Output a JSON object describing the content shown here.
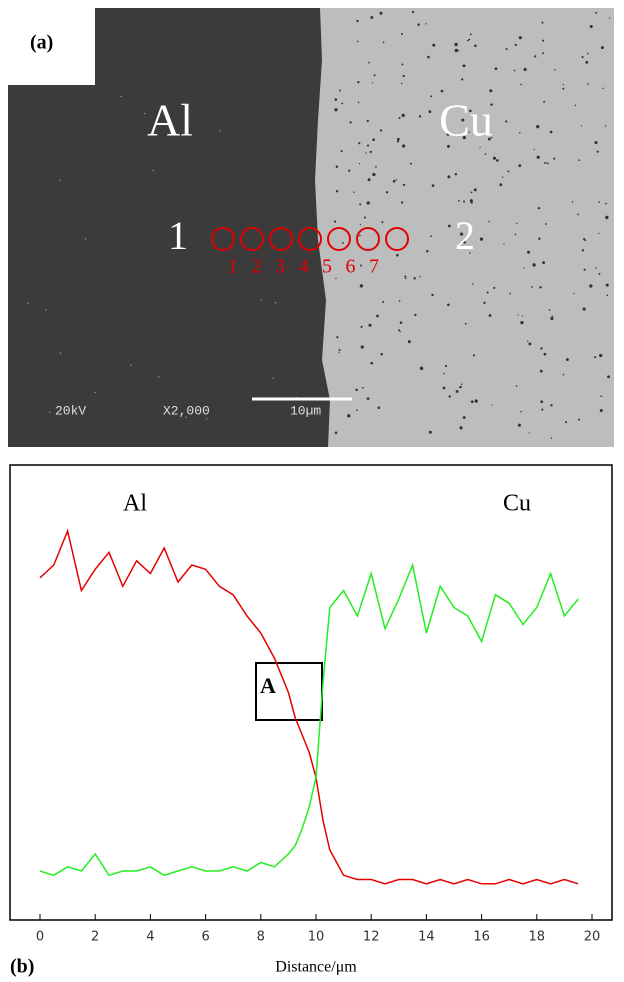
{
  "panel_a": {
    "label": "(a)",
    "left_material": "Al",
    "right_material": "Cu",
    "region_left": "1",
    "region_right": "2",
    "points": [
      "1",
      "2",
      "3",
      "4",
      "5",
      "6",
      "7"
    ],
    "voltage": "20kV",
    "magnification": "X2,000",
    "scale": "10µm"
  },
  "chart_data": {
    "type": "line",
    "panel_label": "(b)",
    "xlabel": "Distance/μm",
    "annotations": [
      "Al",
      "Cu",
      "A"
    ],
    "x": [
      0,
      0.5,
      1,
      1.5,
      2,
      2.5,
      3,
      3.5,
      4,
      4.5,
      5,
      5.5,
      6,
      6.5,
      7,
      7.5,
      8,
      8.5,
      9,
      9.25,
      9.5,
      9.75,
      10,
      10.25,
      10.5,
      11,
      11.5,
      12,
      12.5,
      13,
      13.5,
      14,
      14.5,
      15,
      15.5,
      16,
      16.5,
      17,
      17.5,
      18,
      18.5,
      19,
      19.5
    ],
    "series": [
      {
        "name": "Al",
        "color": "#e60000",
        "values": [
          77,
          80,
          88,
          74,
          79,
          83,
          75,
          81,
          78,
          84,
          76,
          80,
          79,
          75,
          73,
          68,
          64,
          58,
          50,
          44,
          40,
          36,
          30,
          20,
          13,
          7,
          6,
          6,
          5,
          6,
          6,
          5,
          6,
          5,
          6,
          5,
          5,
          6,
          5,
          6,
          5,
          6,
          5
        ]
      },
      {
        "name": "Cu",
        "color": "#22ee22",
        "values": [
          8,
          7,
          9,
          8,
          12,
          7,
          8,
          8,
          9,
          7,
          8,
          9,
          8,
          8,
          9,
          8,
          10,
          9,
          12,
          14,
          18,
          23,
          30,
          52,
          70,
          74,
          68,
          78,
          65,
          72,
          80,
          64,
          75,
          70,
          68,
          62,
          73,
          71,
          66,
          70,
          78,
          68,
          72
        ]
      }
    ],
    "xlim": [
      0,
      20
    ],
    "xticks": [
      0,
      2,
      4,
      6,
      8,
      10,
      12,
      14,
      16,
      18,
      20
    ],
    "ylim": [
      0,
      100
    ]
  }
}
